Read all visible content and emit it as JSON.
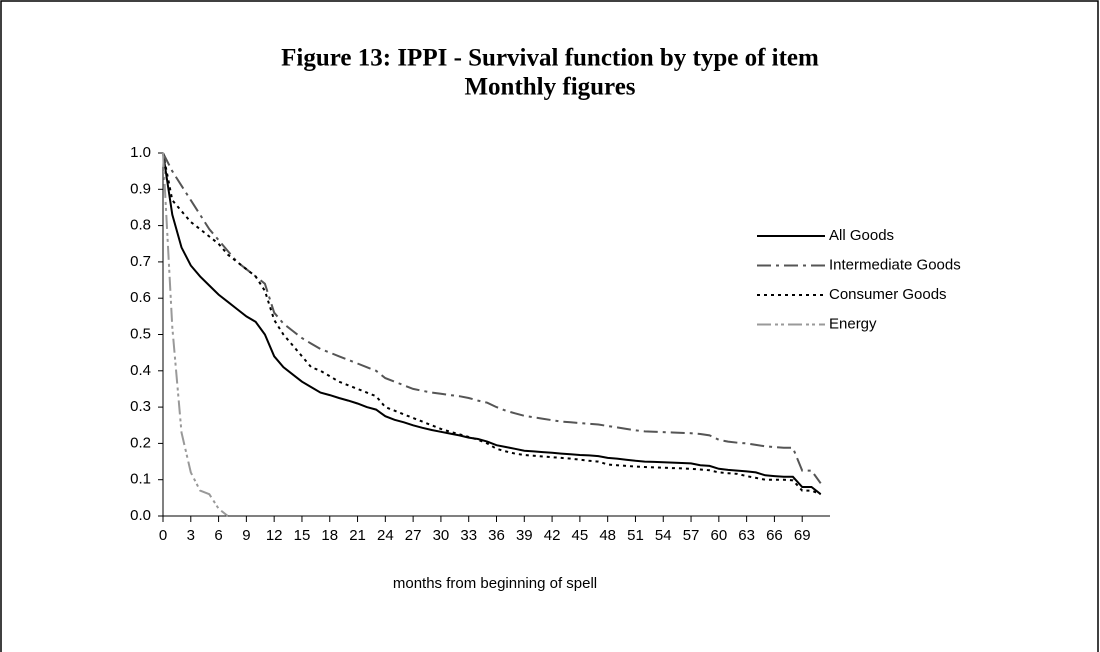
{
  "chart_data": {
    "type": "line",
    "title": "Figure 13: IPPI - Survival function by type of item",
    "subtitle": "Monthly figures",
    "x_label": "months from beginning of spell",
    "x": [
      0,
      1,
      2,
      3,
      4,
      5,
      6,
      7,
      8,
      9,
      10,
      11,
      12,
      13,
      14,
      15,
      16,
      17,
      18,
      19,
      20,
      21,
      22,
      23,
      24,
      25,
      26,
      27,
      28,
      29,
      30,
      31,
      32,
      33,
      34,
      35,
      36,
      37,
      38,
      39,
      40,
      41,
      42,
      43,
      44,
      45,
      46,
      47,
      48,
      49,
      50,
      51,
      52,
      53,
      54,
      55,
      56,
      57,
      58,
      59,
      60,
      61,
      62,
      63,
      64,
      65,
      66,
      67,
      68,
      69,
      70,
      71
    ],
    "xlim": [
      0,
      72
    ],
    "xticks": [
      0,
      3,
      6,
      9,
      12,
      15,
      18,
      21,
      24,
      27,
      30,
      33,
      36,
      39,
      42,
      45,
      48,
      51,
      54,
      57,
      60,
      63,
      66,
      69
    ],
    "ylim": [
      0,
      1
    ],
    "yticks": [
      {
        "value": 0,
        "label": "0.0"
      },
      0.1,
      0.2,
      0.3,
      0.4,
      0.5,
      0.6,
      0.7,
      0.8,
      0.9,
      {
        "value": 1,
        "label": "1.0"
      }
    ],
    "legend": "right",
    "series": [
      {
        "name": "All Goods",
        "color": "#000000",
        "values": [
          1.0,
          0.83,
          0.74,
          0.69,
          0.66,
          0.635,
          0.61,
          0.59,
          0.57,
          0.55,
          0.535,
          0.5,
          0.44,
          0.41,
          0.39,
          0.37,
          0.355,
          0.34,
          0.333,
          0.325,
          0.318,
          0.31,
          0.3,
          0.293,
          0.275,
          0.265,
          0.258,
          0.25,
          0.243,
          0.237,
          0.232,
          0.227,
          0.222,
          0.216,
          0.212,
          0.205,
          0.195,
          0.19,
          0.185,
          0.18,
          0.178,
          0.176,
          0.174,
          0.172,
          0.17,
          0.168,
          0.167,
          0.165,
          0.16,
          0.158,
          0.155,
          0.152,
          0.15,
          0.149,
          0.148,
          0.147,
          0.146,
          0.145,
          0.14,
          0.138,
          0.13,
          0.127,
          0.125,
          0.123,
          0.12,
          0.112,
          0.11,
          0.108,
          0.108,
          0.08,
          0.08,
          0.06
        ]
      },
      {
        "name": "Intermediate Goods",
        "color": "#555555",
        "values": [
          1.0,
          0.95,
          0.91,
          0.87,
          0.83,
          0.79,
          0.76,
          0.73,
          0.7,
          0.68,
          0.66,
          0.64,
          0.56,
          0.53,
          0.51,
          0.49,
          0.475,
          0.46,
          0.45,
          0.44,
          0.43,
          0.42,
          0.41,
          0.4,
          0.38,
          0.37,
          0.36,
          0.35,
          0.345,
          0.34,
          0.337,
          0.333,
          0.33,
          0.325,
          0.318,
          0.312,
          0.3,
          0.29,
          0.283,
          0.276,
          0.272,
          0.268,
          0.264,
          0.26,
          0.258,
          0.256,
          0.254,
          0.252,
          0.248,
          0.244,
          0.24,
          0.236,
          0.233,
          0.232,
          0.231,
          0.23,
          0.229,
          0.228,
          0.226,
          0.222,
          0.21,
          0.205,
          0.202,
          0.2,
          0.196,
          0.192,
          0.19,
          0.188,
          0.188,
          0.125,
          0.125,
          0.09
        ]
      },
      {
        "name": "Consumer Goods",
        "color": "#000000",
        "values": [
          1.0,
          0.87,
          0.84,
          0.81,
          0.79,
          0.77,
          0.75,
          0.72,
          0.7,
          0.68,
          0.66,
          0.62,
          0.54,
          0.5,
          0.47,
          0.44,
          0.41,
          0.4,
          0.385,
          0.37,
          0.36,
          0.35,
          0.34,
          0.33,
          0.3,
          0.29,
          0.28,
          0.27,
          0.26,
          0.25,
          0.24,
          0.232,
          0.225,
          0.218,
          0.21,
          0.2,
          0.185,
          0.178,
          0.172,
          0.168,
          0.166,
          0.164,
          0.162,
          0.16,
          0.158,
          0.155,
          0.152,
          0.15,
          0.142,
          0.14,
          0.138,
          0.136,
          0.135,
          0.134,
          0.133,
          0.132,
          0.131,
          0.13,
          0.128,
          0.126,
          0.12,
          0.118,
          0.116,
          0.11,
          0.105,
          0.1,
          0.1,
          0.1,
          0.098,
          0.07,
          0.07,
          0.06
        ]
      },
      {
        "name": "Energy",
        "color": "#999999",
        "values": [
          1.0,
          0.52,
          0.23,
          0.12,
          0.07,
          0.06,
          0.02,
          0.0,
          null,
          null,
          null,
          null,
          null,
          null,
          null,
          null,
          null,
          null,
          null,
          null,
          null,
          null,
          null,
          null,
          null,
          null,
          null,
          null,
          null,
          null,
          null,
          null,
          null,
          null,
          null,
          null,
          null,
          null,
          null,
          null,
          null,
          null,
          null,
          null,
          null,
          null,
          null,
          null,
          null,
          null,
          null,
          null,
          null,
          null,
          null,
          null,
          null,
          null,
          null,
          null,
          null,
          null,
          null,
          null,
          null,
          null,
          null,
          null,
          null,
          null,
          null,
          null
        ]
      }
    ]
  }
}
